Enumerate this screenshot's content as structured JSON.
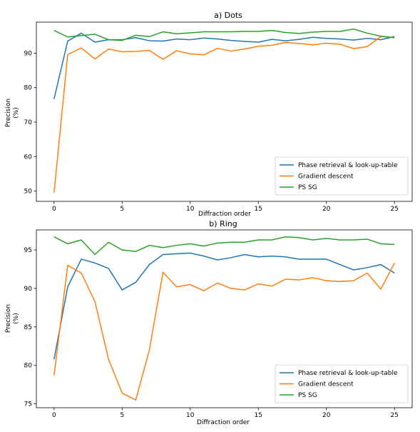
{
  "chart_data": [
    {
      "type": "line",
      "title": "a) Dots",
      "xlabel": "Diffraction order",
      "ylabel_line1": "Precision",
      "ylabel_line2": "(%)",
      "xlim": [
        -1.3,
        26.3
      ],
      "ylim": [
        47,
        99
      ],
      "xticks": [
        0,
        5,
        10,
        15,
        20,
        25
      ],
      "yticks": [
        50,
        60,
        70,
        80,
        90
      ],
      "grid": false,
      "legend_position": "lower-right",
      "x": [
        0,
        1,
        2,
        3,
        4,
        5,
        6,
        7,
        8,
        9,
        10,
        11,
        12,
        13,
        14,
        15,
        16,
        17,
        18,
        19,
        20,
        21,
        22,
        23,
        24,
        25
      ],
      "series": [
        {
          "name": "Phase retrieval & look-up-table",
          "color": "#1f77b4",
          "values": [
            76.7,
            93.5,
            95.8,
            93.2,
            93.9,
            93.9,
            94.5,
            93.6,
            93.5,
            94.1,
            93.9,
            94.4,
            94.1,
            93.7,
            93.4,
            93.2,
            94.0,
            93.6,
            94.0,
            94.6,
            94.3,
            94.1,
            93.8,
            94.3,
            93.9,
            94.8
          ]
        },
        {
          "name": "Gradient descent",
          "color": "#ff7f0e",
          "values": [
            49.5,
            89.6,
            91.5,
            88.3,
            91.2,
            90.4,
            90.5,
            90.8,
            88.2,
            90.7,
            89.8,
            89.5,
            91.4,
            90.6,
            91.2,
            92.0,
            92.3,
            93.1,
            92.8,
            92.4,
            92.9,
            92.6,
            91.3,
            91.9,
            94.8,
            94.5
          ]
        },
        {
          "name": "PS SG",
          "color": "#2ca02c",
          "values": [
            96.6,
            94.7,
            95.1,
            95.5,
            93.9,
            93.7,
            95.2,
            94.8,
            96.2,
            95.6,
            95.9,
            96.2,
            96.2,
            96.2,
            96.3,
            96.3,
            96.6,
            96.0,
            95.7,
            96.1,
            96.3,
            96.3,
            97.0,
            95.8,
            94.9,
            94.5
          ]
        }
      ]
    },
    {
      "type": "line",
      "title": "b) Ring",
      "xlabel": "Diffraction order",
      "ylabel_line1": "Precision",
      "ylabel_line2": "(%)",
      "xlim": [
        -1.3,
        26.3
      ],
      "ylim": [
        74.5,
        97.6
      ],
      "xticks": [
        0,
        5,
        10,
        15,
        20,
        25
      ],
      "yticks": [
        75,
        80,
        85,
        90,
        95
      ],
      "grid": false,
      "legend_position": "lower-right",
      "x": [
        0,
        1,
        2,
        3,
        4,
        5,
        6,
        7,
        8,
        9,
        10,
        11,
        12,
        13,
        14,
        15,
        16,
        17,
        18,
        19,
        20,
        21,
        22,
        23,
        24,
        25
      ],
      "series": [
        {
          "name": "Phase retrieval & look-up-table",
          "color": "#1f77b4",
          "values": [
            80.8,
            90.2,
            93.8,
            93.3,
            92.6,
            89.8,
            90.8,
            93.1,
            94.4,
            94.5,
            94.6,
            94.2,
            93.7,
            94.0,
            94.4,
            94.1,
            94.2,
            94.1,
            93.8,
            93.8,
            93.8,
            93.1,
            92.4,
            92.7,
            93.1,
            92.0
          ]
        },
        {
          "name": "Gradient descent",
          "color": "#ff7f0e",
          "values": [
            78.7,
            93.0,
            92.0,
            88.3,
            80.8,
            76.4,
            75.5,
            82.0,
            92.1,
            90.2,
            90.5,
            89.7,
            90.7,
            90.0,
            89.8,
            90.6,
            90.3,
            91.2,
            91.1,
            91.4,
            91.0,
            90.9,
            91.0,
            92.0,
            89.9,
            93.3
          ]
        },
        {
          "name": "PS SG",
          "color": "#2ca02c",
          "values": [
            96.7,
            95.8,
            96.3,
            94.4,
            96.0,
            95.0,
            94.8,
            95.6,
            95.3,
            95.6,
            95.8,
            95.5,
            95.9,
            96.0,
            96.0,
            96.3,
            96.3,
            96.7,
            96.6,
            96.3,
            96.5,
            96.3,
            96.3,
            96.4,
            95.8,
            95.7
          ]
        }
      ]
    }
  ]
}
